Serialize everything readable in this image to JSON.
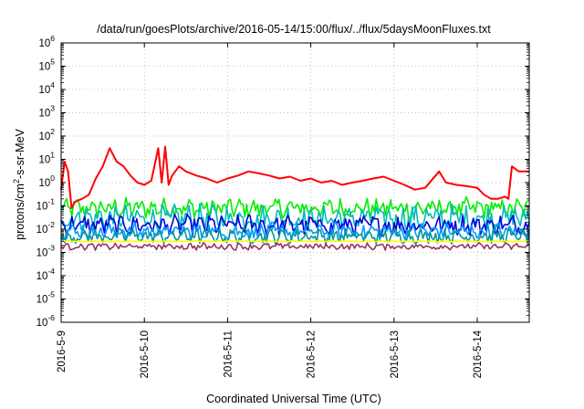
{
  "chart_data": {
    "type": "line",
    "title": "/data/run/goesPlots/archive/2016-05-14/15:00/flux/../flux/5daysMoonFluxes.txt",
    "xlabel": "Coordinated Universal Time (UTC)",
    "ylabel": "protons/cm²-s-sr-MeV",
    "x_ticks": [
      "2016-5-9",
      "2016-5-10",
      "2016-5-11",
      "2016-5-12",
      "2016-5-13",
      "2016-5-14"
    ],
    "xlim": [
      "2016-05-09 00:00",
      "2016-05-14 15:00"
    ],
    "y_scale": "log",
    "ylim": [
      1e-06,
      1000000.0
    ],
    "y_ticks": [
      {
        "base": "10",
        "exp": "-6"
      },
      {
        "base": "10",
        "exp": "-5"
      },
      {
        "base": "10",
        "exp": "-4"
      },
      {
        "base": "10",
        "exp": "-3"
      },
      {
        "base": "10",
        "exp": "-2"
      },
      {
        "base": "10",
        "exp": "-1"
      },
      {
        "base": "10",
        "exp": "0"
      },
      {
        "base": "10",
        "exp": "1"
      },
      {
        "base": "10",
        "exp": "2"
      },
      {
        "base": "10",
        "exp": "3"
      },
      {
        "base": "10",
        "exp": "4"
      },
      {
        "base": "10",
        "exp": "5"
      },
      {
        "base": "10",
        "exp": "6"
      }
    ],
    "grid": true,
    "series": [
      {
        "color": "#ff0000",
        "x": [
          "2016-05-09 00:00",
          "2016-05-09 01:00",
          "2016-05-09 02:00",
          "2016-05-09 03:00",
          "2016-05-09 04:00",
          "2016-05-09 06:00",
          "2016-05-09 08:00",
          "2016-05-09 10:00",
          "2016-05-09 12:00",
          "2016-05-09 14:00",
          "2016-05-09 16:00",
          "2016-05-09 18:00",
          "2016-05-09 20:00",
          "2016-05-09 22:00",
          "2016-05-10 00:00",
          "2016-05-10 02:00",
          "2016-05-10 04:00",
          "2016-05-10 05:00",
          "2016-05-10 06:00",
          "2016-05-10 07:00",
          "2016-05-10 08:00",
          "2016-05-10 10:00",
          "2016-05-10 12:00",
          "2016-05-10 15:00",
          "2016-05-10 18:00",
          "2016-05-10 21:00",
          "2016-05-11 00:00",
          "2016-05-11 03:00",
          "2016-05-11 06:00",
          "2016-05-11 09:00",
          "2016-05-11 12:00",
          "2016-05-11 15:00",
          "2016-05-11 18:00",
          "2016-05-11 21:00",
          "2016-05-12 00:00",
          "2016-05-12 03:00",
          "2016-05-12 06:00",
          "2016-05-12 09:00",
          "2016-05-12 12:00",
          "2016-05-12 15:00",
          "2016-05-12 18:00",
          "2016-05-12 21:00",
          "2016-05-13 00:00",
          "2016-05-13 03:00",
          "2016-05-13 06:00",
          "2016-05-13 09:00",
          "2016-05-13 12:00",
          "2016-05-13 13:00",
          "2016-05-13 15:00",
          "2016-05-13 18:00",
          "2016-05-13 21:00",
          "2016-05-14 00:00",
          "2016-05-14 02:00",
          "2016-05-14 04:00",
          "2016-05-14 06:00",
          "2016-05-14 08:00",
          "2016-05-14 09:00",
          "2016-05-14 10:00",
          "2016-05-14 12:00",
          "2016-05-14 15:00"
        ],
        "y": [
          0.5,
          8,
          3,
          0.08,
          0.15,
          0.2,
          0.3,
          1.5,
          5,
          30,
          8,
          5,
          2,
          1,
          0.8,
          1.2,
          30,
          1,
          35,
          0.8,
          2,
          5,
          3,
          2,
          1.5,
          1,
          1.5,
          2,
          3,
          2.5,
          2,
          1.5,
          1.8,
          1.2,
          1.5,
          1,
          1.2,
          0.8,
          1,
          1.2,
          1.5,
          1.8,
          1.2,
          0.8,
          0.5,
          0.6,
          2,
          3,
          1,
          0.8,
          0.7,
          0.6,
          0.3,
          0.2,
          0.2,
          0.25,
          0.2,
          5,
          3,
          3
        ]
      },
      {
        "color": "#00ee00",
        "baseline": 0.08,
        "noise": 0.35
      },
      {
        "color": "#00bbbb",
        "baseline": 0.03,
        "noise": 0.45
      },
      {
        "color": "#0000dd",
        "baseline": 0.015,
        "noise": 0.35
      },
      {
        "color": "#0099ff",
        "baseline": 0.008,
        "noise": 0.3
      },
      {
        "color": "#009999",
        "baseline": 0.005,
        "noise": 0.25
      },
      {
        "color": "#ffff00",
        "baseline": 0.003,
        "noise": 0.02
      },
      {
        "color": "#993366",
        "baseline": 0.0018,
        "noise": 0.12
      }
    ]
  }
}
